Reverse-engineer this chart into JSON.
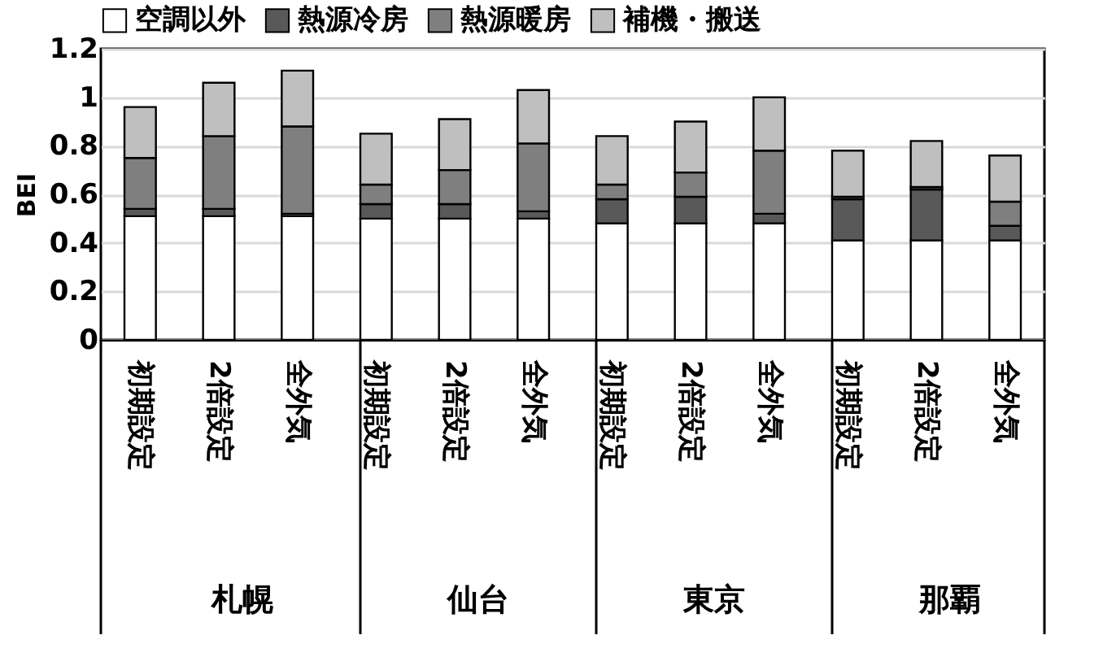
{
  "chart_data": {
    "type": "bar",
    "stacked": true,
    "ylabel": "BEI",
    "categories": [
      "初期設定",
      "2倍設定",
      "全外気",
      "初期設定",
      "2倍設定",
      "全外気",
      "初期設定",
      "2倍設定",
      "全外気",
      "初期設定",
      "2倍設定",
      "全外気"
    ],
    "series": [
      {
        "name": "空調以外",
        "color": "#ffffff",
        "values": [
          0.51,
          0.51,
          0.51,
          0.5,
          0.5,
          0.5,
          0.48,
          0.48,
          0.48,
          0.41,
          0.41,
          0.41
        ]
      },
      {
        "name": "熱源冷房",
        "color": "#595959",
        "values": [
          0.03,
          0.03,
          0.01,
          0.06,
          0.06,
          0.03,
          0.1,
          0.11,
          0.04,
          0.17,
          0.21,
          0.06
        ]
      },
      {
        "name": "熱源暖房",
        "color": "#7f7f7f",
        "values": [
          0.21,
          0.3,
          0.36,
          0.08,
          0.14,
          0.28,
          0.06,
          0.1,
          0.26,
          0.01,
          0.01,
          0.1
        ]
      },
      {
        "name": "補機・搬送",
        "color": "#bfbfbf",
        "values": [
          0.21,
          0.22,
          0.23,
          0.21,
          0.21,
          0.22,
          0.2,
          0.21,
          0.22,
          0.19,
          0.19,
          0.19
        ]
      }
    ],
    "annotations": [
      "札幌",
      "仙台",
      "東京",
      "那覇"
    ],
    "ylim": [
      0,
      1.2
    ],
    "yticks": [
      0,
      0.2,
      0.4,
      0.6,
      0.8,
      1,
      1.2
    ],
    "grid": "y",
    "legend": "top"
  }
}
